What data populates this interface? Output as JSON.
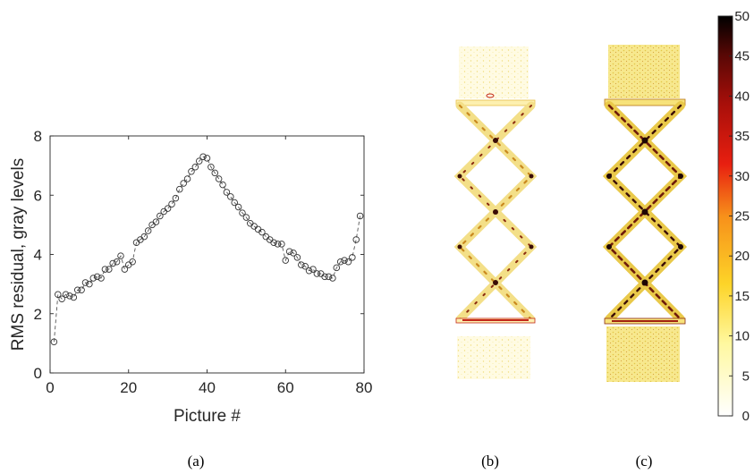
{
  "chart_data": [
    {
      "type": "scatter",
      "panel_label": "(a)",
      "xlabel": "Picture #",
      "ylabel": "RMS residual, gray levels",
      "xlim": [
        0,
        80
      ],
      "ylim": [
        0,
        8
      ],
      "xticks": [
        "0",
        "20",
        "40",
        "60",
        "80"
      ],
      "yticks": [
        "0",
        "2",
        "4",
        "6",
        "8"
      ],
      "marker": "open-circle",
      "line_style": "dashed",
      "grid": false,
      "legend": "none",
      "series": [
        {
          "x": [
            1,
            2,
            3,
            4,
            5,
            6,
            7,
            8,
            9,
            10,
            11,
            12,
            13,
            14,
            15,
            16,
            17,
            18,
            19,
            20,
            21,
            22,
            23,
            24,
            25,
            26,
            27,
            28,
            29,
            30,
            31,
            32,
            33,
            34,
            35,
            36,
            37,
            38,
            39,
            40,
            41,
            42,
            43,
            44,
            45,
            46,
            47,
            48,
            49,
            50,
            51,
            52,
            53,
            54,
            55,
            56,
            57,
            58,
            59,
            60,
            61,
            62,
            63,
            64,
            65,
            66,
            67,
            68,
            69,
            70,
            71,
            72,
            73,
            74,
            75,
            76,
            77,
            78,
            79
          ],
          "y": [
            1.05,
            2.65,
            2.5,
            2.65,
            2.6,
            2.55,
            2.8,
            2.8,
            3.05,
            3.0,
            3.2,
            3.25,
            3.2,
            3.5,
            3.5,
            3.7,
            3.75,
            3.95,
            3.5,
            3.65,
            3.75,
            4.4,
            4.5,
            4.6,
            4.8,
            5.0,
            5.1,
            5.3,
            5.45,
            5.55,
            5.7,
            5.9,
            6.2,
            6.4,
            6.55,
            6.8,
            6.95,
            7.15,
            7.3,
            7.25,
            6.95,
            6.75,
            6.55,
            6.35,
            6.1,
            5.95,
            5.75,
            5.6,
            5.4,
            5.25,
            5.05,
            4.95,
            4.85,
            4.75,
            4.6,
            4.5,
            4.4,
            4.35,
            4.35,
            3.8,
            4.1,
            4.05,
            3.9,
            3.65,
            3.6,
            3.45,
            3.5,
            3.35,
            3.35,
            3.25,
            3.25,
            3.2,
            3.55,
            3.75,
            3.8,
            3.75,
            3.9,
            4.5,
            5.3
          ]
        }
      ]
    },
    {
      "type": "heatmap",
      "panel_label": "(b)",
      "colorbar": {
        "min": 0,
        "max": 50,
        "ticks": [
          "0",
          "5",
          "10",
          "15",
          "20",
          "25",
          "30",
          "35",
          "40",
          "45",
          "50"
        ],
        "colormap": "hot (white-yellow-red-black)"
      }
    },
    {
      "type": "heatmap",
      "panel_label": "(c)"
    }
  ],
  "colors": {
    "axis": "#262626",
    "marker": "#333333",
    "specimen_light": "#fdf6cf",
    "specimen_yellow": "#f3e37a",
    "specimen_dark": "#3a0c06",
    "specimen_red": "#c4281a"
  }
}
